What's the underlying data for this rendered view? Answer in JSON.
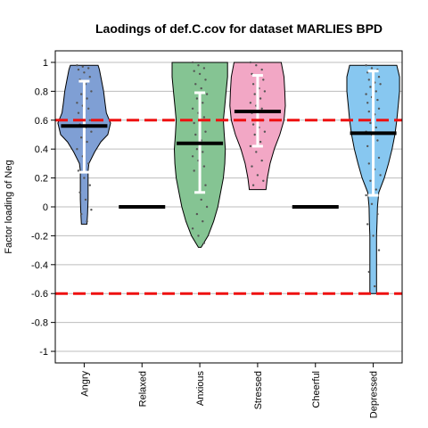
{
  "chart_data": {
    "type": "violin",
    "title": "Laodings of def.C.cov for dataset MARLIES BPD",
    "xlabel": "",
    "ylabel": "Factor loading of Neg",
    "ylim": [
      -1.08,
      1.08
    ],
    "yticks": [
      "-1",
      "-0.8",
      "-0.6",
      "-0.4",
      "-0.2",
      "0",
      "0.2",
      "0.4",
      "0.6",
      "0.8",
      "1"
    ],
    "grid": "horizontal",
    "thresholds": [
      0.6,
      -0.6
    ],
    "threshold_color": "#ee1111",
    "categories": [
      "Angry",
      "Relaxed",
      "Anxious",
      "Stressed",
      "Cheerful",
      "Depressed"
    ],
    "series": [
      {
        "category": "Angry",
        "color": "#7f9fd4",
        "mean": 0.56,
        "whisker": [
          0.24,
          0.87
        ],
        "range": [
          -0.12,
          0.98
        ],
        "points": [
          0.98,
          0.97,
          0.96,
          0.95,
          0.93,
          0.9,
          0.88,
          0.85,
          0.8,
          0.78,
          0.75,
          0.72,
          0.7,
          0.68,
          0.65,
          0.62,
          0.6,
          0.57,
          0.55,
          0.52,
          0.48,
          0.45,
          0.4,
          0.35,
          0.3,
          0.25,
          0.2,
          0.15,
          0.1,
          0.05,
          -0.02,
          -0.05,
          -0.1
        ],
        "profile": [
          [
            -0.12,
            0.1
          ],
          [
            -0.05,
            0.12
          ],
          [
            0.05,
            0.14
          ],
          [
            0.15,
            0.14
          ],
          [
            0.25,
            0.14
          ],
          [
            0.3,
            0.17
          ],
          [
            0.38,
            0.38
          ],
          [
            0.45,
            0.6
          ],
          [
            0.5,
            0.85
          ],
          [
            0.58,
            0.95
          ],
          [
            0.65,
            0.8
          ],
          [
            0.72,
            0.75
          ],
          [
            0.8,
            0.7
          ],
          [
            0.88,
            0.62
          ],
          [
            0.95,
            0.55
          ],
          [
            0.98,
            0.5
          ]
        ]
      },
      {
        "category": "Relaxed",
        "color": "#ffffff",
        "mean": 0.0,
        "whisker": null,
        "range": null,
        "points": [],
        "profile": []
      },
      {
        "category": "Anxious",
        "color": "#85c493",
        "mean": 0.44,
        "whisker": [
          0.1,
          0.79
        ],
        "range": [
          -0.28,
          1.0
        ],
        "points": [
          1.0,
          0.98,
          0.96,
          0.94,
          0.92,
          0.88,
          0.85,
          0.82,
          0.78,
          0.75,
          0.72,
          0.68,
          0.65,
          0.62,
          0.58,
          0.55,
          0.52,
          0.5,
          0.46,
          0.44,
          0.4,
          0.38,
          0.35,
          0.32,
          0.28,
          0.25,
          0.2,
          0.15,
          0.1,
          0.05,
          0.0,
          -0.05,
          -0.1,
          -0.15,
          -0.2,
          -0.25
        ],
        "profile": [
          [
            -0.28,
            0.05
          ],
          [
            -0.2,
            0.3
          ],
          [
            -0.1,
            0.5
          ],
          [
            0.0,
            0.65
          ],
          [
            0.1,
            0.75
          ],
          [
            0.2,
            0.85
          ],
          [
            0.3,
            0.9
          ],
          [
            0.4,
            0.92
          ],
          [
            0.5,
            0.88
          ],
          [
            0.6,
            0.85
          ],
          [
            0.7,
            0.9
          ],
          [
            0.8,
            0.95
          ],
          [
            0.9,
            1.0
          ],
          [
            1.0,
            1.0
          ]
        ]
      },
      {
        "category": "Stressed",
        "color": "#f2a7c5",
        "mean": 0.66,
        "whisker": [
          0.42,
          0.91
        ],
        "range": [
          0.12,
          1.0
        ],
        "points": [
          1.0,
          0.98,
          0.95,
          0.92,
          0.9,
          0.88,
          0.85,
          0.82,
          0.8,
          0.78,
          0.75,
          0.72,
          0.7,
          0.68,
          0.65,
          0.62,
          0.6,
          0.57,
          0.55,
          0.52,
          0.5,
          0.45,
          0.42,
          0.38,
          0.32,
          0.28,
          0.22,
          0.18,
          0.15
        ],
        "profile": [
          [
            0.12,
            0.3
          ],
          [
            0.2,
            0.35
          ],
          [
            0.3,
            0.45
          ],
          [
            0.4,
            0.6
          ],
          [
            0.5,
            0.8
          ],
          [
            0.6,
            0.95
          ],
          [
            0.7,
            1.0
          ],
          [
            0.8,
            0.98
          ],
          [
            0.9,
            0.95
          ],
          [
            1.0,
            0.85
          ]
        ]
      },
      {
        "category": "Cheerful",
        "color": "#ffffff",
        "mean": 0.0,
        "whisker": null,
        "range": null,
        "points": [],
        "profile": []
      },
      {
        "category": "Depressed",
        "color": "#87c7f0",
        "mean": 0.51,
        "whisker": [
          0.08,
          0.94
        ],
        "range": [
          -0.6,
          0.98
        ],
        "points": [
          0.98,
          0.96,
          0.95,
          0.93,
          0.92,
          0.9,
          0.88,
          0.86,
          0.85,
          0.83,
          0.8,
          0.78,
          0.76,
          0.74,
          0.72,
          0.7,
          0.68,
          0.66,
          0.64,
          0.6,
          0.58,
          0.55,
          0.52,
          0.5,
          0.46,
          0.42,
          0.38,
          0.34,
          0.3,
          0.26,
          0.22,
          0.18,
          0.12,
          0.08,
          0.02,
          -0.05,
          -0.12,
          -0.2,
          -0.3,
          -0.45,
          -0.55
        ],
        "profile": [
          [
            -0.6,
            0.12
          ],
          [
            -0.5,
            0.12
          ],
          [
            -0.4,
            0.12
          ],
          [
            -0.3,
            0.12
          ],
          [
            -0.2,
            0.12
          ],
          [
            -0.1,
            0.14
          ],
          [
            0.0,
            0.15
          ],
          [
            0.1,
            0.2
          ],
          [
            0.2,
            0.4
          ],
          [
            0.3,
            0.55
          ],
          [
            0.4,
            0.68
          ],
          [
            0.5,
            0.78
          ],
          [
            0.6,
            0.85
          ],
          [
            0.7,
            0.9
          ],
          [
            0.8,
            0.95
          ],
          [
            0.9,
            0.95
          ],
          [
            0.98,
            0.85
          ]
        ]
      }
    ]
  }
}
